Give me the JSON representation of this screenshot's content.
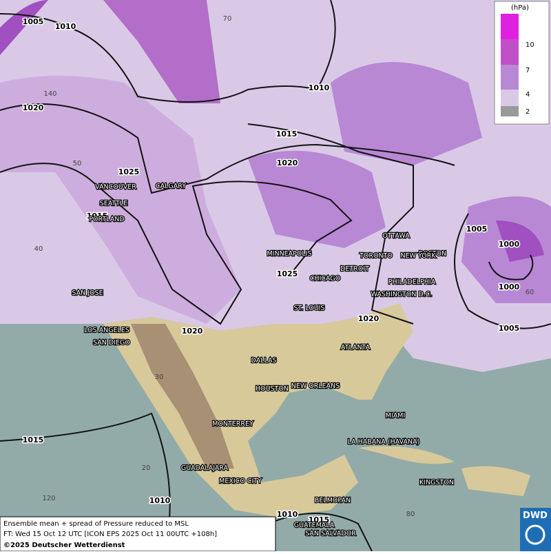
{
  "map": {
    "isobar_labels": [
      "1005",
      "1010",
      "1020",
      "1010",
      "1015",
      "1020",
      "1025",
      "1015",
      "1025",
      "1020",
      "1020",
      "1005",
      "1000",
      "1000",
      "1005",
      "1015",
      "1010",
      "1010",
      "1015"
    ],
    "grid_labels": [
      "70",
      "140",
      "50",
      "40",
      "30",
      "20",
      "120",
      "60",
      "80"
    ],
    "cities": [
      "VANCOUVER",
      "CALGARY",
      "SEATTLE",
      "PORTLAND",
      "SAN JOSE",
      "LOS ANGELES",
      "SAN DIEGO",
      "MINNEAPOLIS",
      "TORONTO",
      "OTTAWA",
      "DETROIT",
      "CHICAGO",
      "BOSTON",
      "NEW YORK",
      "PHILADELPHIA",
      "WASHINGTON D.C.",
      "ST. LOUIS",
      "ATLANTA",
      "DALLAS",
      "HOUSTON",
      "NEW ORLEANS",
      "MIAMI",
      "MONTERREY",
      "LA HABANA (HAVANA)",
      "GUADALAJARA",
      "MEXICO CITY",
      "KINGSTON",
      "BELMOPAN",
      "GUATEMALA",
      "SAN SALVADOR"
    ]
  },
  "legend": {
    "unit": "(hPa)",
    "levels": [
      "10",
      "7",
      "4",
      "2"
    ]
  },
  "footer": {
    "line1": "Ensemble mean + spread of Pressure reduced to MSL",
    "line2": "FT: Wed 15 Oct 12 UTC [ICON EPS 2025 Oct 11 00UTC +108h]",
    "line3": "©2025 Deutscher Wetterdienst"
  },
  "logo": "DWD"
}
